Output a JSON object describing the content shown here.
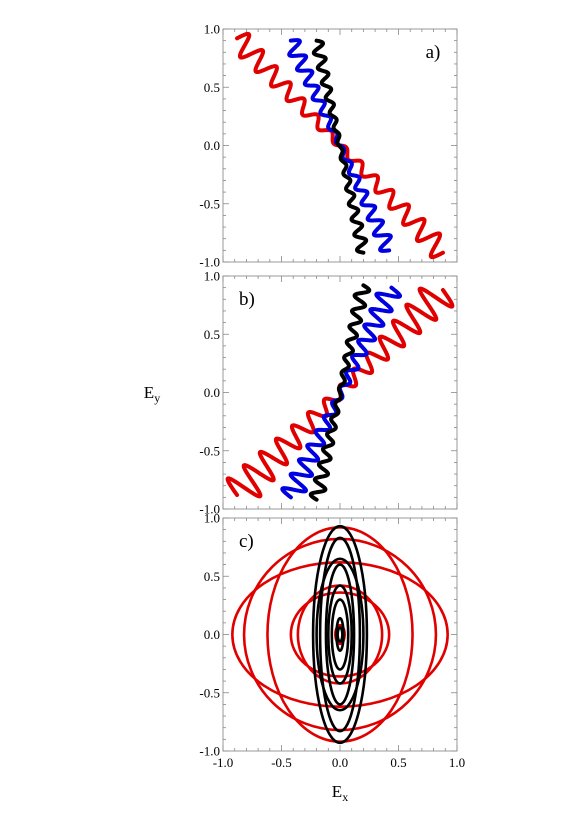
{
  "figure": {
    "xlabel": "E",
    "xlabel_sub": "x",
    "ylabel": "E",
    "ylabel_sub": "y"
  },
  "chart_data": [
    {
      "type": "line",
      "panel_label": "a)",
      "xlim": [
        -1.0,
        1.0
      ],
      "ylim": [
        -1.0,
        1.0
      ],
      "x_ticks": [
        "-1.0",
        "-0.5",
        "0.0",
        "0.5",
        "1.0"
      ],
      "y_ticks": [
        "-1.0",
        "-0.5",
        "0.0",
        "0.5",
        "1.0"
      ],
      "show_x_tick_labels": false,
      "series": [
        {
          "color": "#e00000",
          "kind": "band",
          "x": [
            -0.88,
            0.88
          ],
          "y": [
            0.92,
            -0.92
          ],
          "width": 0.1,
          "loops": 14
        },
        {
          "color": "#0000e0",
          "kind": "band",
          "x": [
            -0.42,
            0.42
          ],
          "y": [
            0.9,
            -0.9
          ],
          "width": 0.07,
          "loops": 14
        },
        {
          "color": "#000000",
          "kind": "band",
          "x": [
            -0.2,
            0.2
          ],
          "y": [
            0.9,
            -0.92
          ],
          "width": 0.05,
          "loops": 14
        }
      ]
    },
    {
      "type": "line",
      "panel_label": "b)",
      "xlim": [
        -1.0,
        1.0
      ],
      "ylim": [
        -1.0,
        1.0
      ],
      "x_ticks": [
        "-1.0",
        "-0.5",
        "0.0",
        "0.5",
        "1.0"
      ],
      "y_ticks": [
        "-1.0",
        "-0.5",
        "0.0",
        "0.5",
        "1.0"
      ],
      "show_x_tick_labels": false,
      "series": [
        {
          "color": "#e00000",
          "kind": "band",
          "x": [
            -0.88,
            0.88
          ],
          "y": [
            -0.88,
            0.88
          ],
          "width": 0.16,
          "loops": 14
        },
        {
          "color": "#0000e0",
          "kind": "band",
          "x": [
            -0.42,
            0.44
          ],
          "y": [
            -0.9,
            0.9
          ],
          "width": 0.1,
          "loops": 14
        },
        {
          "color": "#000000",
          "kind": "band",
          "x": [
            -0.2,
            0.2
          ],
          "y": [
            -0.92,
            0.92
          ],
          "width": 0.06,
          "loops": 14
        }
      ]
    },
    {
      "type": "line",
      "panel_label": "c)",
      "xlim": [
        -1.0,
        1.0
      ],
      "ylim": [
        -1.0,
        1.0
      ],
      "x_ticks": [
        "-1.0",
        "-0.5",
        "0.0",
        "0.5",
        "1.0"
      ],
      "y_ticks": [
        "-1.0",
        "-0.5",
        "0.0",
        "0.5",
        "1.0"
      ],
      "show_x_tick_labels": true,
      "series": [
        {
          "color": "#e00000",
          "kind": "ellipses",
          "cx": 0.0,
          "cy": 0.0,
          "radii": [
            [
              0.92,
              0.62
            ],
            [
              0.82,
              0.82
            ],
            [
              0.62,
              0.92
            ],
            [
              0.42,
              0.36
            ],
            [
              0.36,
              0.42
            ],
            [
              0.04,
              0.08
            ]
          ]
        },
        {
          "color": "#000000",
          "kind": "ellipses",
          "cx": 0.0,
          "cy": 0.0,
          "radii": [
            [
              0.23,
              0.93
            ],
            [
              0.17,
              0.83
            ],
            [
              0.2,
              0.65
            ],
            [
              0.12,
              0.6
            ],
            [
              0.1,
              0.42
            ],
            [
              0.07,
              0.3
            ],
            [
              0.03,
              0.14
            ],
            [
              0.02,
              0.06
            ]
          ]
        }
      ]
    }
  ]
}
